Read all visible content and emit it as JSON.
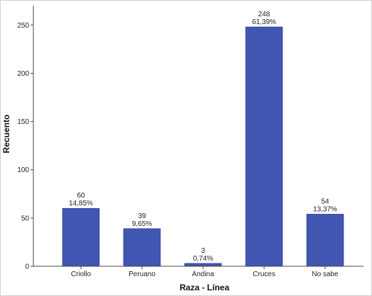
{
  "chart_data": {
    "type": "bar",
    "title": "",
    "xlabel": "Raza - Línea",
    "ylabel": "Recuento",
    "categories": [
      "Criollo",
      "Peruano",
      "Andina",
      "Cruces",
      "No sabe"
    ],
    "values": [
      60,
      39,
      3,
      248,
      54
    ],
    "value_labels": [
      "60",
      "39",
      "3",
      "248",
      "54"
    ],
    "percent_labels": [
      "14,85%",
      "9,65%",
      "0,74%",
      "61,39%",
      "13,37%"
    ],
    "ylim": [
      0,
      270
    ],
    "yticks": [
      0,
      50,
      100,
      150,
      200,
      250
    ],
    "grid": false,
    "legend": "none",
    "bar_color": "#4056b0",
    "bar_edge_color": "#2b3d8f"
  }
}
